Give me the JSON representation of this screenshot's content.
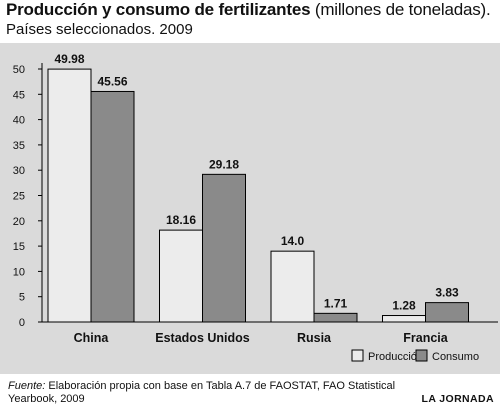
{
  "header": {
    "title_bold": "Producción y consumo de fertilizantes",
    "title_rest": "(millones de toneladas).",
    "subtitle": "Países seleccionados. 2009"
  },
  "footer": {
    "source_label": "Fuente:",
    "source_text": "Elaboración propia con base en Tabla A.7 de FAOSTAT, FAO Statistical Yearbook, 2009",
    "brand": "LA JORNADA"
  },
  "colors": {
    "background": "#dadada",
    "produccion": "#ececec",
    "consumo": "#8a8a8a"
  },
  "chart_data": {
    "type": "bar",
    "categories": [
      "China",
      "Estados Unidos",
      "Rusia",
      "Francia"
    ],
    "series": [
      {
        "name": "Producción",
        "values": [
          49.98,
          18.16,
          14.0,
          1.28
        ],
        "labels": [
          "49.98",
          "18.16",
          "14.0",
          "1.28"
        ]
      },
      {
        "name": "Consumo",
        "values": [
          45.56,
          29.18,
          1.71,
          3.83
        ],
        "labels": [
          "45.56",
          "29.18",
          "1.71",
          "3.83"
        ]
      }
    ],
    "yticks": [
      "0",
      "5",
      "10",
      "15",
      "20",
      "25",
      "30",
      "35",
      "40",
      "45",
      "50"
    ],
    "ylim": [
      0,
      50
    ],
    "grid": false,
    "legend_position": "bottom-right",
    "title": "Producción y consumo de fertilizantes (millones de toneladas). Países seleccionados. 2009"
  }
}
